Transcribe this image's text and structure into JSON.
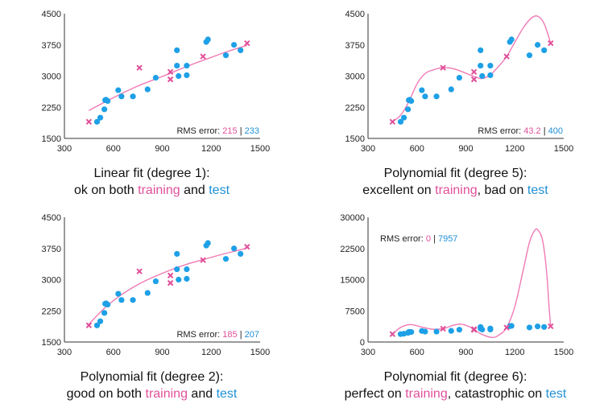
{
  "colors": {
    "train": "#e0509a",
    "test": "#1ea0e6",
    "curve": "#f07ab4",
    "axis": "#333333",
    "test_text": "#1f90d6"
  },
  "chart_data": [
    {
      "type": "scatter",
      "title": "",
      "xlim": [
        300,
        1500
      ],
      "xticks": [
        300,
        600,
        900,
        1200,
        1500
      ],
      "ylim": [
        1500,
        4500
      ],
      "yticks": [
        1500,
        2250,
        3000,
        3750,
        4500
      ],
      "series": [
        {
          "role": "training",
          "marker": "x",
          "x": [
            450,
            760,
            950,
            950,
            1150,
            1420
          ],
          "y": [
            1900,
            3200,
            3100,
            2920,
            3470,
            3790
          ]
        },
        {
          "role": "test",
          "marker": "circle",
          "x": [
            500,
            520,
            545,
            550,
            555,
            565,
            630,
            650,
            720,
            810,
            860,
            990,
            990,
            1000,
            1050,
            1050,
            1170,
            1180,
            1290,
            1340,
            1380
          ],
          "y": [
            1900,
            2000,
            2200,
            2420,
            2430,
            2400,
            2660,
            2510,
            2510,
            2680,
            2960,
            3620,
            3250,
            3000,
            3020,
            3250,
            3820,
            3880,
            3500,
            3750,
            3620
          ]
        },
        {
          "role": "fit",
          "line": true,
          "x": [
            450,
            600,
            750,
            900,
            1050,
            1200,
            1300,
            1420
          ],
          "y": [
            2170,
            2480,
            2760,
            2990,
            3230,
            3450,
            3590,
            3740
          ]
        }
      ],
      "rms": {
        "label": "RMS error:",
        "train": "215",
        "test": "233"
      },
      "caption": {
        "line1": "Linear fit (degree 1):",
        "line2_a": "ok on both ",
        "line2_train": "training",
        "line2_b": " and ",
        "line2_test": "test",
        "line2_c": ""
      }
    },
    {
      "type": "scatter",
      "title": "",
      "xlim": [
        300,
        1500
      ],
      "xticks": [
        300,
        600,
        900,
        1200,
        1500
      ],
      "ylim": [
        1500,
        4500
      ],
      "yticks": [
        1500,
        2250,
        3000,
        3750,
        4500
      ],
      "series": [
        {
          "role": "training",
          "marker": "x",
          "x": [
            450,
            760,
            950,
            950,
            1150,
            1420
          ],
          "y": [
            1900,
            3200,
            3100,
            2920,
            3470,
            3790
          ]
        },
        {
          "role": "test",
          "marker": "circle",
          "x": [
            500,
            520,
            545,
            550,
            555,
            565,
            630,
            650,
            720,
            810,
            860,
            990,
            990,
            1000,
            1050,
            1050,
            1170,
            1180,
            1290,
            1340,
            1380
          ],
          "y": [
            1900,
            2000,
            2200,
            2420,
            2430,
            2400,
            2660,
            2510,
            2510,
            2680,
            2960,
            3620,
            3250,
            3000,
            3020,
            3250,
            3820,
            3880,
            3500,
            3750,
            3620
          ]
        },
        {
          "role": "fit",
          "line": true,
          "x": [
            450,
            500,
            550,
            600,
            650,
            700,
            760,
            820,
            880,
            950,
            1000,
            1050,
            1100,
            1150,
            1200,
            1250,
            1300,
            1340,
            1380,
            1420
          ],
          "y": [
            1900,
            2060,
            2380,
            2810,
            3060,
            3150,
            3200,
            3180,
            3100,
            2990,
            2940,
            3030,
            3230,
            3470,
            3810,
            4150,
            4390,
            4440,
            4260,
            3790
          ]
        }
      ],
      "rms": {
        "label": "RMS error:",
        "train": "43.2",
        "test": "400"
      },
      "caption": {
        "line1": "Polynomial fit (degree 5):",
        "line2_a": "excellent on ",
        "line2_train": "training",
        "line2_b": ", bad on ",
        "line2_test": "test",
        "line2_c": ""
      }
    },
    {
      "type": "scatter",
      "title": "",
      "xlim": [
        300,
        1500
      ],
      "xticks": [
        300,
        600,
        900,
        1200,
        1500
      ],
      "ylim": [
        1500,
        4500
      ],
      "yticks": [
        1500,
        2250,
        3000,
        3750,
        4500
      ],
      "series": [
        {
          "role": "training",
          "marker": "x",
          "x": [
            450,
            760,
            950,
            950,
            1150,
            1420
          ],
          "y": [
            1900,
            3200,
            3100,
            2920,
            3470,
            3790
          ]
        },
        {
          "role": "test",
          "marker": "circle",
          "x": [
            500,
            520,
            545,
            550,
            555,
            565,
            630,
            650,
            720,
            810,
            860,
            990,
            990,
            1000,
            1050,
            1050,
            1170,
            1180,
            1290,
            1340,
            1380
          ],
          "y": [
            1900,
            2000,
            2200,
            2420,
            2430,
            2400,
            2660,
            2510,
            2510,
            2680,
            2960,
            3620,
            3250,
            3000,
            3020,
            3250,
            3820,
            3880,
            3500,
            3750,
            3620
          ]
        },
        {
          "role": "fit",
          "line": true,
          "x": [
            450,
            550,
            650,
            750,
            850,
            950,
            1050,
            1150,
            1250,
            1350,
            1420
          ],
          "y": [
            1930,
            2330,
            2640,
            2880,
            3070,
            3230,
            3370,
            3480,
            3590,
            3690,
            3760
          ]
        }
      ],
      "rms": {
        "label": "RMS error:",
        "train": "185",
        "test": "207"
      },
      "caption": {
        "line1": "Polynomial fit (degree 2):",
        "line2_a": "good on both ",
        "line2_train": "training",
        "line2_b": " and ",
        "line2_test": "test",
        "line2_c": ""
      }
    },
    {
      "type": "scatter",
      "title": "",
      "xlim": [
        300,
        1500
      ],
      "xticks": [
        300,
        600,
        900,
        1200,
        1500
      ],
      "ylim": [
        0,
        30000
      ],
      "yticks": [
        0,
        7500,
        15000,
        22500,
        30000
      ],
      "series": [
        {
          "role": "training",
          "marker": "x",
          "x": [
            450,
            760,
            950,
            950,
            1150,
            1420
          ],
          "y": [
            1900,
            3200,
            3100,
            2920,
            3470,
            3790
          ]
        },
        {
          "role": "test",
          "marker": "circle",
          "x": [
            500,
            520,
            545,
            550,
            555,
            565,
            630,
            650,
            720,
            810,
            860,
            990,
            990,
            1000,
            1050,
            1050,
            1170,
            1180,
            1290,
            1340,
            1380
          ],
          "y": [
            1900,
            2000,
            2200,
            2420,
            2430,
            2400,
            2660,
            2510,
            2510,
            2680,
            2960,
            3620,
            3250,
            3000,
            3020,
            3250,
            3820,
            3880,
            3500,
            3750,
            3620
          ]
        },
        {
          "role": "fit",
          "line": true,
          "x": [
            450,
            500,
            560,
            620,
            690,
            760,
            820,
            870,
            920,
            950,
            1000,
            1060,
            1100,
            1150,
            1200,
            1250,
            1290,
            1320,
            1340,
            1370,
            1395,
            1410,
            1420
          ],
          "y": [
            1900,
            3500,
            4200,
            3700,
            3100,
            3200,
            4000,
            4300,
            3700,
            3000,
            1800,
            1100,
            1600,
            3500,
            8500,
            17000,
            24000,
            26700,
            27000,
            24500,
            17000,
            8500,
            3800
          ]
        }
      ],
      "rms": {
        "label": "RMS error:",
        "train": "0",
        "test": "7957"
      },
      "caption": {
        "line1": "Polynomial fit (degree 6):",
        "line2_a": "perfect on ",
        "line2_train": "training",
        "line2_b": ", catastrophic on ",
        "line2_test": "test",
        "line2_c": ""
      }
    }
  ]
}
